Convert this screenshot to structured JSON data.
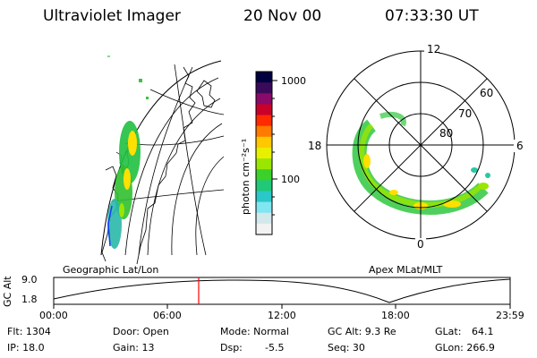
{
  "header": {
    "instrument": "Ultraviolet Imager",
    "date": "20 Nov 00",
    "time": "07:33:30 UT"
  },
  "geo_panel": {
    "label": "Geographic Lat/Lon"
  },
  "polar_panel": {
    "label": "Apex MLat/MLT",
    "mlt_labels": [
      "12",
      "18",
      "6",
      "0"
    ],
    "lat_labels": [
      "60",
      "70",
      "80"
    ]
  },
  "colorbar": {
    "label": "photon cm⁻²s⁻¹",
    "ticks": [
      "1000",
      "100"
    ],
    "colors": [
      "#000040",
      "#3a0a5a",
      "#8a0a6a",
      "#c8002a",
      "#ff2a00",
      "#ff7a00",
      "#ffc800",
      "#e8f000",
      "#9ae600",
      "#3cd02a",
      "#20c878",
      "#2ac8c8",
      "#80e6f0",
      "#d2e8ea",
      "#f2f2f2"
    ]
  },
  "altitude_plot": {
    "ylabel": "GC Alt",
    "y_ticks": [
      "9.0",
      "1.8"
    ],
    "x_ticks": [
      "00:00",
      "06:00",
      "12:00",
      "18:00",
      "23:59"
    ],
    "marker_color": "#ff0000"
  },
  "info": {
    "flt": "Flt: 1304",
    "ip": "IP: 18.0",
    "door": "Door: Open",
    "gain": "Gain: 13",
    "mode": "Mode: Normal",
    "dsp": "Dsp:",
    "dsp_value": "-5.5",
    "gc_alt": "GC Alt: 9.3 Re",
    "seq": "Seq: 30",
    "glat": "GLat:",
    "glat_value": "64.1",
    "glon": "GLon: 266.9"
  }
}
